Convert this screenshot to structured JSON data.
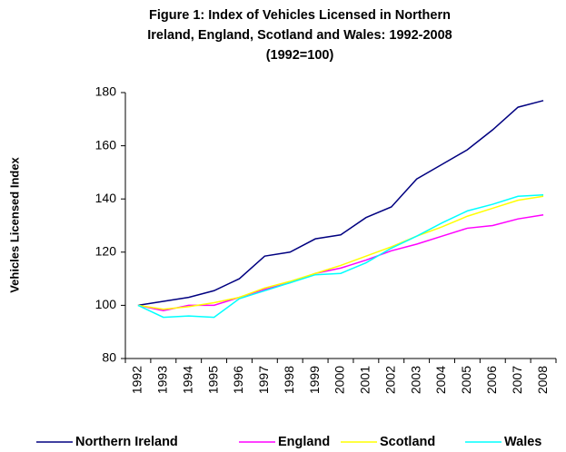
{
  "chart_data": {
    "type": "line",
    "title": [
      "Figure 1:  Index of Vehicles Licensed in Northern",
      "Ireland, England, Scotland and Wales: 1992-2008",
      "(1992=100)"
    ],
    "y_label": "Vehicles Licensed Index",
    "categories": [
      "1992",
      "1993",
      "1994",
      "1995",
      "1996",
      "1997",
      "1998",
      "1999",
      "2000",
      "2001",
      "2002",
      "2003",
      "2004",
      "2005",
      "2006",
      "2007",
      "2008"
    ],
    "series": [
      {
        "name": "Northern Ireland",
        "color": "#000080",
        "values": [
          100,
          101.5,
          103,
          105.5,
          110,
          118.5,
          120,
          125,
          126.5,
          133,
          137,
          147.5,
          153,
          158.5,
          166,
          174.5,
          177
        ]
      },
      {
        "name": "England",
        "color": "#ff00ff",
        "values": [
          100,
          98,
          100,
          100,
          103,
          106,
          108.5,
          112,
          114,
          117,
          120.5,
          123,
          126,
          129,
          130,
          132.5,
          134
        ]
      },
      {
        "name": "Scotland",
        "color": "#ffff00",
        "values": [
          100,
          98.5,
          99.5,
          101,
          103,
          106.5,
          109,
          112,
          115,
          118.5,
          122,
          126,
          129.5,
          133.5,
          136.5,
          139.5,
          141
        ]
      },
      {
        "name": "Wales",
        "color": "#00ffff",
        "values": [
          100,
          95.5,
          96,
          95.5,
          102.5,
          105.5,
          108.5,
          111.5,
          112,
          116,
          121.5,
          126,
          131,
          135.5,
          138,
          141,
          141.5
        ]
      }
    ],
    "ylim": [
      80,
      180
    ],
    "yticks": [
      80,
      100,
      120,
      140,
      160,
      180
    ],
    "grid": false,
    "legend": "bottom"
  }
}
